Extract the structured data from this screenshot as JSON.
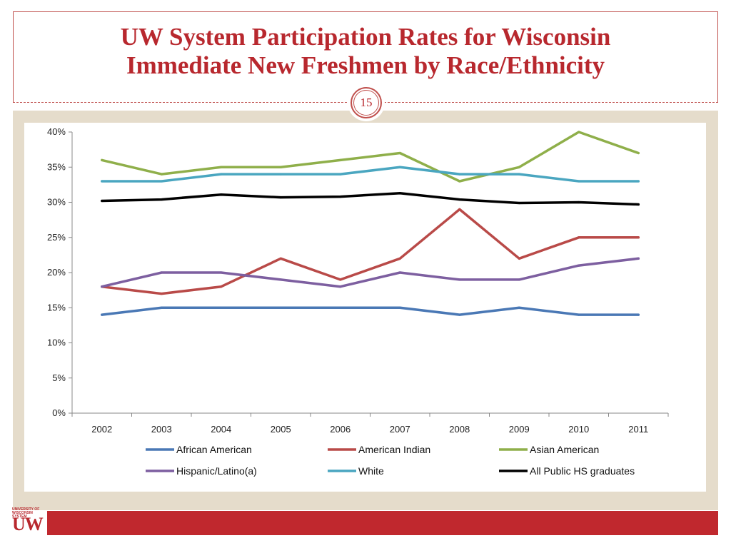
{
  "slide": {
    "title_line1": "UW System Participation Rates for Wisconsin",
    "title_line2": "Immediate New Freshmen by Race/Ethnicity",
    "page_number": "15",
    "logo_small_text": "UNIVERSITY OF WISCONSIN SYSTEM",
    "logo_text": "UW",
    "colors": {
      "accent": "#b8282e",
      "band": "#e5dccb",
      "footer": "#c0282e"
    }
  },
  "chart_data": {
    "type": "line",
    "title": "",
    "xlabel": "",
    "ylabel": "",
    "categories": [
      "2002",
      "2003",
      "2004",
      "2005",
      "2006",
      "2007",
      "2008",
      "2009",
      "2010",
      "2011"
    ],
    "y_ticks": [
      "0%",
      "5%",
      "10%",
      "15%",
      "20%",
      "25%",
      "30%",
      "35%",
      "40%"
    ],
    "ylim": [
      0,
      40
    ],
    "grid": false,
    "legend_position": "bottom",
    "series": [
      {
        "name": "African American",
        "color": "#4a78b5",
        "values": [
          14,
          15,
          15,
          15,
          15,
          15,
          14,
          15,
          14,
          14
        ]
      },
      {
        "name": "American Indian",
        "color": "#b94a48",
        "values": [
          18,
          17,
          18,
          22,
          19,
          22,
          29,
          22,
          25,
          25
        ]
      },
      {
        "name": "Asian American",
        "color": "#8faf4a",
        "values": [
          36,
          34,
          35,
          35,
          36,
          37,
          33,
          35,
          40,
          37
        ]
      },
      {
        "name": "Hispanic/Latino(a)",
        "color": "#7d5fa0",
        "values": [
          18,
          20,
          20,
          19,
          18,
          20,
          19,
          19,
          21,
          22
        ]
      },
      {
        "name": "White",
        "color": "#4aa6c0",
        "values": [
          33,
          33,
          34,
          34,
          34,
          35,
          34,
          34,
          33,
          33
        ]
      },
      {
        "name": "All Public HS graduates",
        "color": "#000000",
        "values": [
          30.2,
          30.4,
          31.1,
          30.7,
          30.8,
          31.3,
          30.4,
          29.9,
          30,
          29.7
        ]
      }
    ]
  }
}
